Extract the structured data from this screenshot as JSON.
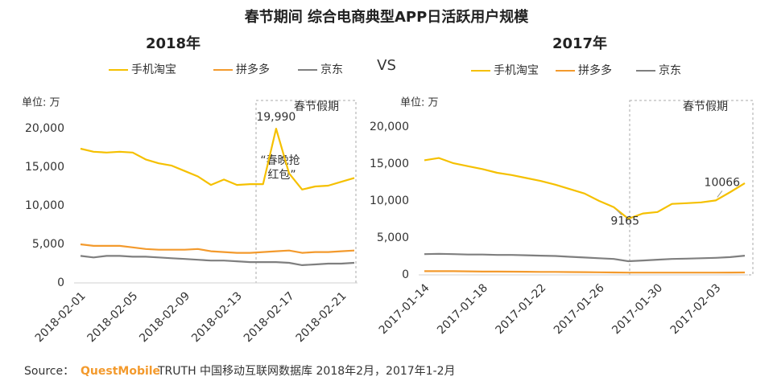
{
  "title": "春节期间  综合电商典型APP日活跃用户规模",
  "vs": "VS",
  "source": {
    "prefix": "Source：",
    "brand": "QuestMobile",
    "text": "TRUTH 中国移动互联网数据库 2018年2月，2017年1-2月"
  },
  "chart_data": [
    {
      "type": "line",
      "title": "2018年",
      "unit_label": "单位: 万",
      "highlight_label": "春节假期",
      "annotation": [
        "“春晚抢",
        "红包”"
      ],
      "categories": [
        "2018-02-01",
        null,
        null,
        null,
        "2018-02-05",
        null,
        null,
        null,
        "2018-02-09",
        null,
        null,
        null,
        "2018-02-13",
        null,
        null,
        null,
        "2018-02-17",
        null,
        null,
        null,
        "2018-02-21",
        null
      ],
      "series": [
        {
          "name": "手机淘宝",
          "color": "#f5c000",
          "values": [
            17400,
            17000,
            16900,
            17000,
            16900,
            16000,
            15500,
            15200,
            14500,
            13800,
            12700,
            13400,
            12700,
            12800,
            12800,
            19990,
            14200,
            12100,
            12500,
            12600,
            13100,
            13600
          ],
          "value_labels": [
            null,
            null,
            null,
            null,
            null,
            null,
            null,
            null,
            null,
            null,
            null,
            null,
            null,
            null,
            null,
            "19,990",
            null,
            null,
            null,
            null,
            null,
            null
          ]
        },
        {
          "name": "拼多多",
          "color": "#f39a2d",
          "values": [
            5000,
            4800,
            4800,
            4800,
            4600,
            4400,
            4300,
            4300,
            4300,
            4400,
            4100,
            4000,
            3900,
            3900,
            4000,
            4100,
            4200,
            3900,
            4000,
            4000,
            4100,
            4200
          ]
        },
        {
          "name": "京东",
          "color": "#7f7f7f",
          "values": [
            3500,
            3300,
            3500,
            3500,
            3400,
            3400,
            3300,
            3200,
            3100,
            3000,
            2900,
            2900,
            2800,
            2700,
            2700,
            2700,
            2600,
            2300,
            2400,
            2500,
            2500,
            2600
          ]
        }
      ],
      "ylim": [
        0,
        20000
      ],
      "yticks": [
        0,
        {
          "value": 5000,
          "label": "5,000"
        },
        {
          "value": 10000,
          "label": "10,000"
        },
        {
          "value": 15000,
          "label": "15,000"
        },
        {
          "value": 20000,
          "label": "20,000"
        }
      ],
      "grid": false
    },
    {
      "type": "line",
      "title": "2017年",
      "unit_label": "单位: 万",
      "highlight_label": "春节假期",
      "categories": [
        "2017-01-14",
        null,
        null,
        null,
        "2017-01-18",
        null,
        null,
        null,
        "2017-01-22",
        null,
        null,
        null,
        "2017-01-26",
        null,
        null,
        null,
        "2017-01-30",
        null,
        null,
        null,
        "2017-02-03",
        null,
        null
      ],
      "series": [
        {
          "name": "手机淘宝",
          "color": "#f5c000",
          "values": [
            15500,
            15800,
            15100,
            14700,
            14300,
            13800,
            13500,
            13100,
            12700,
            12200,
            11600,
            11000,
            10000,
            9165,
            7600,
            8300,
            8500,
            9600,
            9700,
            9800,
            10066,
            11200,
            12400
          ],
          "value_labels": [
            null,
            null,
            null,
            null,
            null,
            null,
            null,
            null,
            null,
            null,
            null,
            null,
            null,
            "9165",
            null,
            null,
            null,
            null,
            null,
            null,
            "10066",
            null,
            null
          ]
        },
        {
          "name": "拼多多",
          "color": "#f39a2d",
          "values": [
            500,
            500,
            500,
            480,
            450,
            450,
            430,
            420,
            400,
            400,
            380,
            370,
            350,
            330,
            300,
            300,
            300,
            300,
            300,
            300,
            300,
            320,
            330
          ]
        },
        {
          "name": "京东",
          "color": "#7f7f7f",
          "values": [
            2800,
            2850,
            2800,
            2750,
            2750,
            2700,
            2700,
            2650,
            2600,
            2550,
            2450,
            2350,
            2250,
            2150,
            1850,
            1950,
            2050,
            2150,
            2200,
            2250,
            2300,
            2400,
            2600
          ]
        }
      ],
      "ylim": [
        0,
        20000
      ],
      "yticks": [
        0,
        {
          "value": 5000,
          "label": "5,000"
        },
        {
          "value": 10000,
          "label": "10,000"
        },
        {
          "value": 15000,
          "label": "15,000"
        },
        {
          "value": 20000,
          "label": "20,000"
        }
      ],
      "grid": false
    }
  ]
}
